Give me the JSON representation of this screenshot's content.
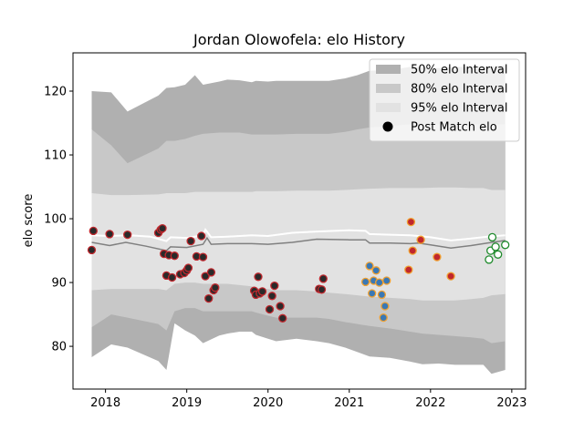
{
  "chart_data": {
    "type": "scatter",
    "title": "Jordan Olowofela: elo History",
    "xlabel": "",
    "ylabel": "elo score",
    "xlim": [
      2017.6,
      2023.17
    ],
    "ylim": [
      73.3,
      126.0
    ],
    "x_ticks": [
      2018,
      2019,
      2020,
      2021,
      2022,
      2023
    ],
    "x_tick_labels": [
      "2018",
      "2019",
      "2020",
      "2021",
      "2022",
      "2023"
    ],
    "y_ticks": [
      80,
      90,
      100,
      110,
      120
    ],
    "y_tick_labels": [
      "80",
      "90",
      "100",
      "110",
      "120"
    ],
    "grid": false,
    "legend_position": "top-right",
    "legend": [
      {
        "label": "50% elo Interval",
        "color": "#b0b0b0",
        "kind": "patch"
      },
      {
        "label": "80% elo Interval",
        "color": "#c8c8c8",
        "kind": "patch"
      },
      {
        "label": "95% elo Interval",
        "color": "#e2e2e2",
        "kind": "patch"
      },
      {
        "label": "Post Match elo",
        "color": "#000000",
        "kind": "marker"
      }
    ],
    "x": [
      2017.83,
      2018.07,
      2018.27,
      2018.65,
      2018.75,
      2018.85,
      2018.98,
      2019.1,
      2019.2,
      2019.4,
      2019.5,
      2019.65,
      2019.8,
      2019.85,
      2020.0,
      2020.1,
      2020.35,
      2020.6,
      2020.75,
      2020.95,
      2021.1,
      2021.25,
      2021.5,
      2021.75,
      2021.9,
      2022.1,
      2022.3,
      2022.5,
      2022.65,
      2022.75,
      2022.92
    ],
    "band_95": {
      "upper": [
        120,
        119.8,
        116.8,
        119.3,
        120.5,
        120.6,
        121,
        122.5,
        121,
        121.5,
        121.8,
        121.7,
        121.4,
        121.6,
        121.5,
        121.6,
        121.6,
        121.6,
        121.6,
        122,
        122.5,
        123.2,
        123.3,
        123.8,
        123.7,
        123.6,
        123.8,
        123.8,
        123.9,
        123.9,
        124
      ],
      "lower": [
        78.3,
        80.3,
        79.8,
        77.7,
        76.3,
        83.6,
        82.5,
        81.7,
        80.5,
        81.7,
        82,
        82.3,
        82.3,
        81.8,
        81.2,
        80.8,
        81.2,
        80.8,
        80.5,
        79.8,
        79.1,
        78.4,
        78.2,
        77.6,
        77.2,
        77.3,
        77.1,
        77.1,
        77.1,
        75.7,
        76.3
      ]
    },
    "band_80": {
      "upper": [
        114,
        111.5,
        108.7,
        111,
        112.2,
        112.2,
        112.5,
        113,
        113.3,
        113.5,
        113.5,
        113.5,
        113.2,
        113.2,
        113.2,
        113.2,
        113.3,
        113.3,
        113.3,
        113.6,
        114,
        114.3,
        114.5,
        114.8,
        114.8,
        114.8,
        114.8,
        114.8,
        114.8,
        114.8,
        114.8
      ],
      "lower": [
        83,
        85,
        84.5,
        83.5,
        82.5,
        85.5,
        86,
        86,
        85.5,
        85.5,
        85.5,
        85.5,
        85.5,
        85.3,
        84.8,
        84.5,
        84.5,
        84.5,
        84.3,
        83.8,
        83.5,
        83.2,
        82.8,
        82.3,
        82,
        81.8,
        81.6,
        81.4,
        81.2,
        80.5,
        80.8
      ]
    },
    "band_50": {
      "upper": [
        104,
        103.7,
        103.7,
        103.8,
        104,
        104,
        104,
        104.2,
        104.2,
        104.2,
        104.2,
        104.2,
        104.2,
        104.3,
        104.3,
        104.3,
        104.4,
        104.4,
        104.4,
        104.5,
        104.6,
        104.7,
        104.8,
        104.8,
        104.8,
        104.9,
        104.9,
        104.8,
        104.8,
        104.5,
        104.5
      ],
      "lower": [
        88.8,
        89,
        89,
        89,
        88.8,
        89.8,
        90,
        90,
        89.8,
        89.8,
        89.8,
        89.6,
        89.4,
        89.2,
        89,
        88.8,
        88.8,
        88.6,
        88.4,
        88.2,
        88,
        87.8,
        87.6,
        87.4,
        87.2,
        87.2,
        87.2,
        87.4,
        87.6,
        88,
        88.2
      ]
    },
    "series": [
      {
        "kind": "mean_line",
        "color": "#808080",
        "x": [
          2017.83,
          2018.05,
          2018.25,
          2018.5,
          2018.75,
          2018.8,
          2019.0,
          2019.2,
          2019.25,
          2019.3,
          2019.5,
          2019.8,
          2020.0,
          2020.3,
          2020.6,
          2021.0,
          2021.2,
          2021.25,
          2021.5,
          2021.75,
          2021.85,
          2022.0,
          2022.25,
          2022.5,
          2022.7,
          2022.92
        ],
        "y": [
          96.3,
          95.8,
          96.3,
          95.7,
          95.0,
          95.6,
          95.5,
          96.0,
          97.0,
          96.0,
          96.1,
          96.1,
          96.0,
          96.3,
          96.8,
          96.7,
          96.7,
          96.2,
          96.2,
          96.1,
          96.2,
          95.9,
          95.4,
          95.8,
          96.2,
          96.6
        ]
      },
      {
        "kind": "median_line",
        "color": "#ffffff",
        "x": [
          2017.83,
          2018.05,
          2018.3,
          2018.55,
          2018.75,
          2018.8,
          2019.0,
          2019.2,
          2019.23,
          2019.3,
          2019.5,
          2019.8,
          2020.0,
          2020.3,
          2020.6,
          2021.0,
          2021.2,
          2021.25,
          2021.5,
          2021.75,
          2021.85,
          2022.0,
          2022.25,
          2022.5,
          2022.7,
          2022.92
        ],
        "y": [
          97.4,
          97.3,
          97.4,
          97.2,
          96.5,
          97.1,
          97.0,
          97.4,
          98.3,
          97.1,
          97.2,
          97.4,
          97.3,
          97.8,
          98.0,
          98.2,
          98.1,
          97.6,
          97.5,
          97.4,
          97.3,
          97.1,
          96.6,
          96.9,
          97.2,
          97.4
        ]
      },
      {
        "kind": "points",
        "name": "Post Match elo",
        "fill": "#2a2a2a",
        "edge": "#c0272d",
        "x": [
          2017.83,
          2017.85,
          2018.05,
          2018.27,
          2018.65,
          2018.68,
          2018.7,
          2018.72,
          2018.75,
          2018.78,
          2018.82,
          2018.85,
          2018.92,
          2018.97,
          2019.0,
          2019.02,
          2019.05,
          2019.12,
          2019.18,
          2019.2,
          2019.23,
          2019.27,
          2019.3,
          2019.33,
          2019.35,
          2019.83,
          2019.85,
          2019.88,
          2019.9,
          2019.93,
          2020.02,
          2020.05,
          2020.08,
          2020.15,
          2020.18,
          2020.63,
          2020.66,
          2020.68
        ],
        "y": [
          95.1,
          98.1,
          97.6,
          97.5,
          97.8,
          98.3,
          98.5,
          94.5,
          91.1,
          94.3,
          90.8,
          94.2,
          91.3,
          91.5,
          91.9,
          92.3,
          96.5,
          94.1,
          97.3,
          94.0,
          91.0,
          87.5,
          91.6,
          88.8,
          89.2,
          88.7,
          88.1,
          90.9,
          88.3,
          88.6,
          85.8,
          87.9,
          89.5,
          86.3,
          84.4,
          89.0,
          88.9,
          90.6
        ]
      },
      {
        "kind": "points",
        "fill": "#3a78b5",
        "edge": "#f0a030",
        "x": [
          2021.2,
          2021.25,
          2021.28,
          2021.3,
          2021.33,
          2021.37,
          2021.4,
          2021.42,
          2021.44,
          2021.46
        ],
        "y": [
          90.1,
          92.6,
          88.3,
          90.3,
          91.9,
          90.0,
          88.1,
          84.5,
          86.3,
          90.3
        ]
      },
      {
        "kind": "points",
        "fill": "#c0272d",
        "edge": "#f0a030",
        "x": [
          2021.73,
          2021.76,
          2021.78,
          2021.88,
          2022.08,
          2022.25
        ],
        "y": [
          92.0,
          99.5,
          95.0,
          96.7,
          94.0,
          91.0
        ]
      },
      {
        "kind": "points",
        "fill": "#ffffff",
        "edge": "#1f8a2c",
        "x": [
          2022.72,
          2022.74,
          2022.76,
          2022.8,
          2022.83,
          2022.92
        ],
        "y": [
          93.6,
          95.0,
          97.1,
          95.6,
          94.4,
          95.9
        ]
      }
    ]
  }
}
